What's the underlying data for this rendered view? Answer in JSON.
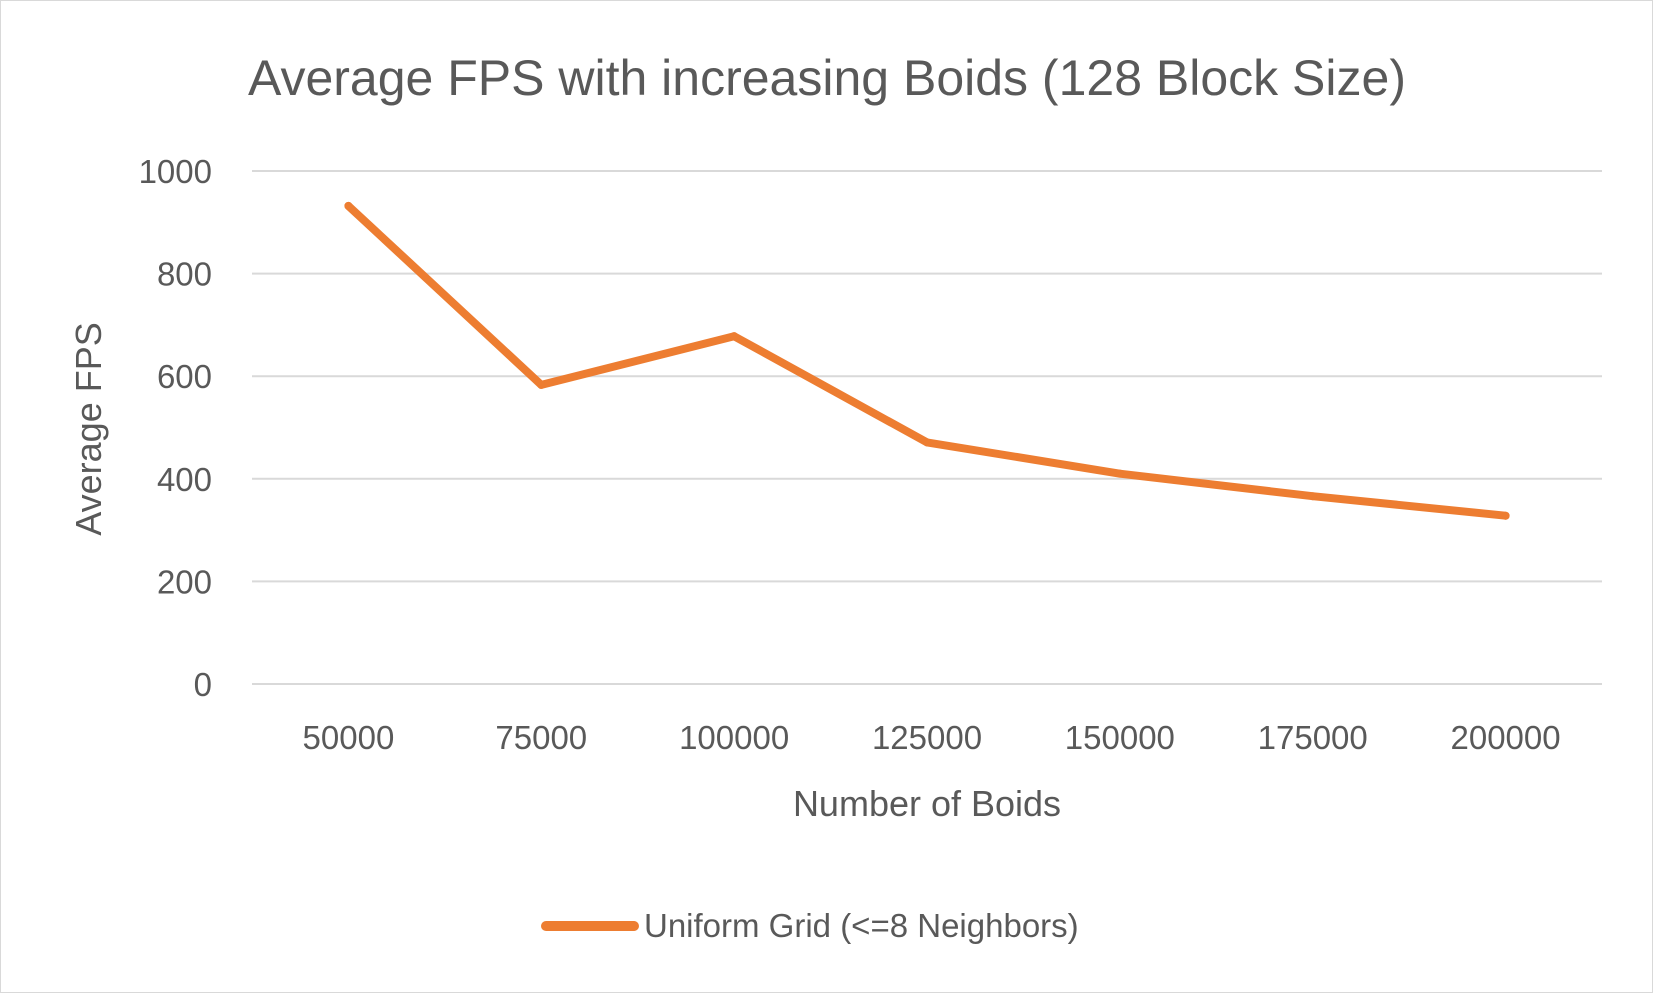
{
  "chart_data": {
    "type": "line",
    "title": "Average FPS with increasing Boids (128 Block Size)",
    "xlabel": "Number of Boids",
    "ylabel": "Average FPS",
    "categories": [
      "50000",
      "75000",
      "100000",
      "125000",
      "150000",
      "175000",
      "200000"
    ],
    "series": [
      {
        "name": "Uniform Grid (<=8 Neighbors)",
        "values": [
          932,
          583,
          678,
          471,
          410,
          366,
          328
        ],
        "color": "#ed7d31"
      }
    ],
    "ylim": [
      0,
      1000
    ],
    "yticks": [
      0,
      200,
      400,
      600,
      800,
      1000
    ],
    "grid": true,
    "legend": "bottom"
  }
}
